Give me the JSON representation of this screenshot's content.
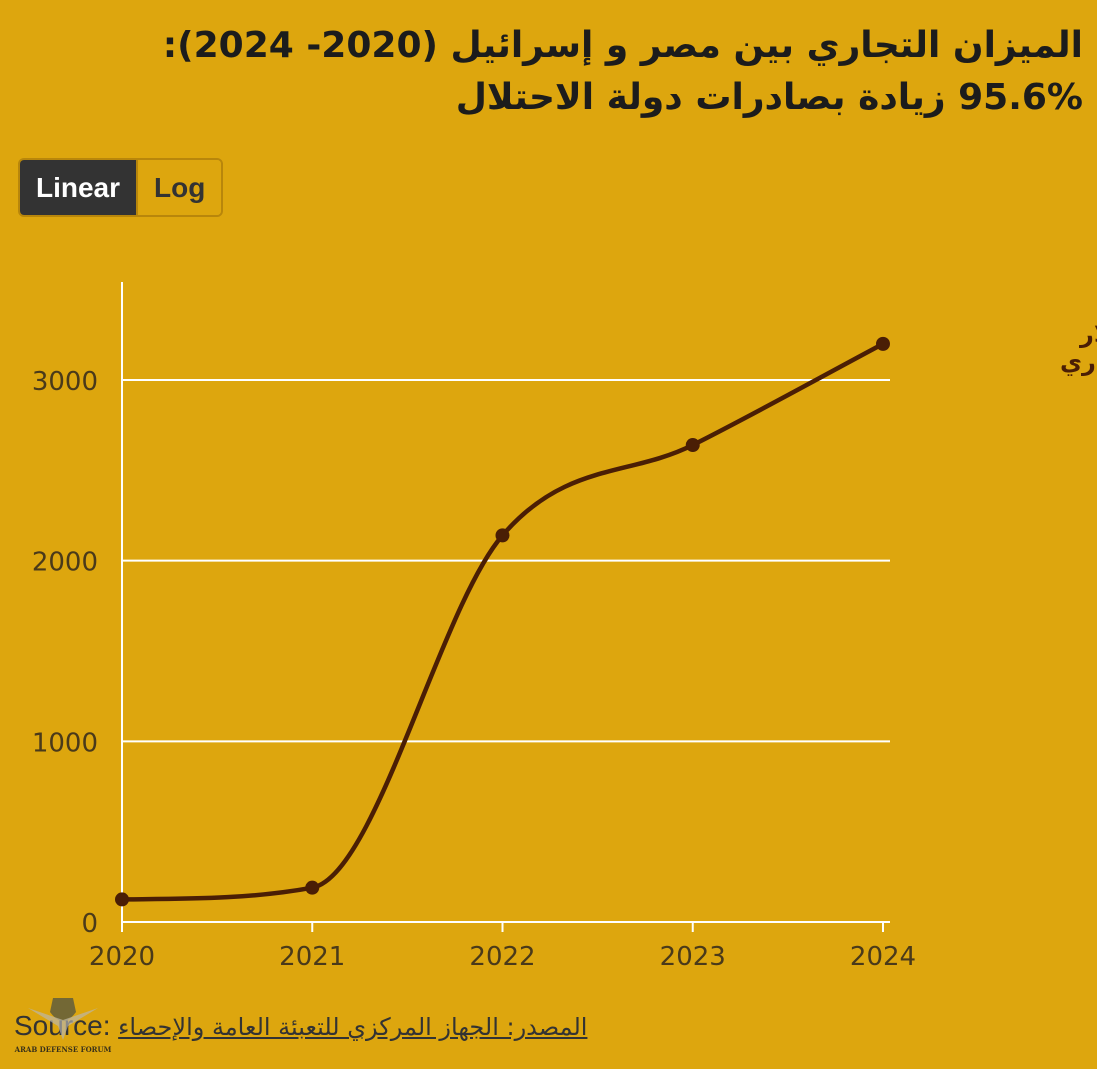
{
  "title": {
    "line1": "الميزان التجاري بين مصر و إسرائيل (2020- 2024):",
    "line2": "95.6% زيادة بصادرات دولة الاحتلال"
  },
  "scale_toggle": {
    "linear_label": "Linear",
    "log_label": "Log",
    "selected": "Linear"
  },
  "source": {
    "label": "Source:",
    "text": "المصدر: الجهاز المركزي للتعبئة العامة والإحصاء"
  },
  "watermark": {
    "text": "ARAB DEFENSE FORUM"
  },
  "colors": {
    "background": "#DDA60E",
    "line": "#4A1E05",
    "grid": "#FFFFFF",
    "title": "#1C1C1C",
    "axis_text": "#4A3A1A"
  },
  "chart_data": {
    "type": "line",
    "x": [
      2020,
      2021,
      2022,
      2023,
      2024
    ],
    "x_tick_labels": [
      "2020",
      "2021",
      "2022",
      "2023",
      "2024"
    ],
    "y_ticks": [
      0,
      1000,
      2000,
      3000
    ],
    "y_tick_labels": [
      "0",
      "1000",
      "2000",
      "3000"
    ],
    "ylim": [
      0,
      3500
    ],
    "xlim": [
      2020,
      2024
    ],
    "grid": "horizontal",
    "scale": "linear",
    "series": [
      {
        "name": "الميزان التجاري (مليون دولار)",
        "label_line1": "الميزان التجاري",
        "label_line2": "(مليون دولار",
        "values": [
          125,
          190,
          2140,
          2640,
          3200
        ]
      }
    ]
  }
}
